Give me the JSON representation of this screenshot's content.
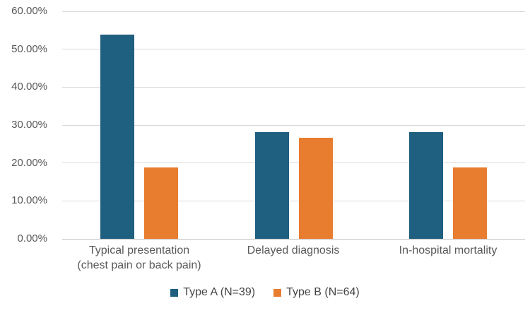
{
  "chart_data": {
    "type": "bar",
    "title": "",
    "categories": [
      "Typical presentation\n(chest pain or back pain)",
      "Delayed diagnosis",
      "In-hospital mortality"
    ],
    "series": [
      {
        "name": "Type A (N=39)",
        "color": "#1F5F7F",
        "values": [
          53.85,
          28.21,
          28.21
        ]
      },
      {
        "name": "Type B (N=64)",
        "color": "#E87C2F",
        "values": [
          18.75,
          26.56,
          18.75
        ]
      }
    ],
    "ylabel": "",
    "xlabel": "",
    "ylim": [
      0,
      60
    ],
    "yticks": [
      0,
      10,
      20,
      30,
      40,
      50,
      60
    ],
    "ytick_labels": [
      "0.00%",
      "10.00%",
      "20.00%",
      "30.00%",
      "40.00%",
      "50.00%",
      "60.00%"
    ],
    "grid": true,
    "legend_position": "bottom",
    "colors": {
      "gridline": "#d9d9d9",
      "axis_line": "#bfbfbf",
      "tick_text": "#595959",
      "category_text": "#595959",
      "legend_text": "#444444",
      "background": "#ffffff"
    }
  }
}
